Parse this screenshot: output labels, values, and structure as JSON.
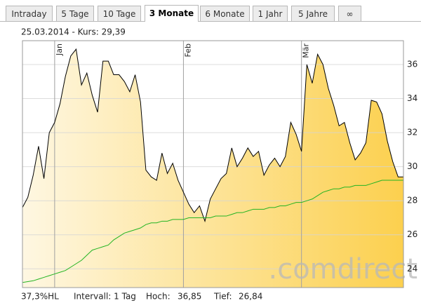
{
  "tabs": [
    "Intraday",
    "5 Tage",
    "10 Tage",
    "3 Monate",
    "6 Monate",
    "1 Jahr",
    "5 Jahre",
    "∞"
  ],
  "active_tab": 3,
  "footer": [
    "37,3%HL",
    "Intervall: 1 Tag",
    "Hoch:",
    "36,85",
    "Tief:",
    "26,84"
  ],
  "chart_data": {
    "type": "line",
    "subtitle": "25.03.2014  -  Kurs: 29,39",
    "watermark": ".comdirect",
    "categories": [
      null,
      null,
      null,
      null,
      null,
      null,
      "Jan",
      null,
      null,
      null,
      null,
      null,
      null,
      null,
      null,
      null,
      null,
      null,
      null,
      null,
      null,
      null,
      null,
      null,
      null,
      null,
      null,
      null,
      null,
      null,
      "Feb",
      null,
      null,
      null,
      null,
      null,
      null,
      null,
      null,
      null,
      null,
      null,
      null,
      null,
      null,
      null,
      null,
      null,
      null,
      null,
      null,
      null,
      "Mär",
      null,
      null,
      null,
      null,
      null,
      null,
      null,
      null,
      null,
      null,
      null,
      null,
      null,
      null,
      null,
      null,
      null,
      null,
      null
    ],
    "series": [
      {
        "color": "#000000",
        "area_colors": [
          "#fef7e2",
          "#fcd04e"
        ],
        "values": [
          27.6,
          28.2,
          29.5,
          31.2,
          29.3,
          32.0,
          32.6,
          33.7,
          35.3,
          36.5,
          36.9,
          34.8,
          35.5,
          34.2,
          33.2,
          36.2,
          36.2,
          35.4,
          35.4,
          35.0,
          34.4,
          35.4,
          33.8,
          29.8,
          29.4,
          29.2,
          30.8,
          29.6,
          30.2,
          29.2,
          28.5,
          27.8,
          27.3,
          27.7,
          26.8,
          28.1,
          28.7,
          29.3,
          29.6,
          31.1,
          30.0,
          30.5,
          31.1,
          30.6,
          30.9,
          29.5,
          30.1,
          30.5,
          30.0,
          30.6,
          32.6,
          31.9,
          30.9,
          36.0,
          34.9,
          36.6,
          36.0,
          34.6,
          33.6,
          32.4,
          32.6,
          31.4,
          30.4,
          30.8,
          31.4,
          33.9,
          33.8,
          33.1,
          31.5,
          30.3,
          29.4,
          29.4
        ]
      },
      {
        "color": "#22b422",
        "values": [
          23.2,
          23.25,
          23.3,
          23.4,
          23.5,
          23.6,
          23.7,
          23.8,
          23.9,
          24.1,
          24.3,
          24.5,
          24.8,
          25.1,
          25.2,
          25.3,
          25.4,
          25.7,
          25.9,
          26.1,
          26.2,
          26.3,
          26.4,
          26.6,
          26.7,
          26.7,
          26.8,
          26.8,
          26.9,
          26.9,
          26.9,
          27.0,
          27.0,
          27.0,
          27.0,
          27.0,
          27.1,
          27.1,
          27.1,
          27.2,
          27.3,
          27.3,
          27.4,
          27.5,
          27.5,
          27.5,
          27.6,
          27.6,
          27.7,
          27.7,
          27.8,
          27.9,
          27.9,
          28.0,
          28.1,
          28.3,
          28.5,
          28.6,
          28.7,
          28.7,
          28.8,
          28.8,
          28.9,
          28.9,
          28.9,
          29.0,
          29.1,
          29.2,
          29.2,
          29.2,
          29.2,
          29.2
        ]
      }
    ],
    "ylim": [
      22.9,
      37.4
    ],
    "yticks": [
      24,
      26,
      28,
      30,
      32,
      34,
      36
    ],
    "grid": true
  }
}
